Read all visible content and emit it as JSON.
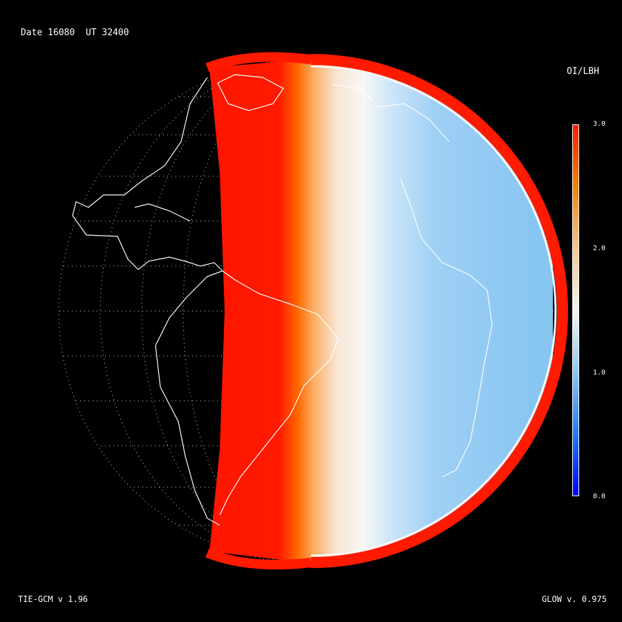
{
  "header": {
    "date_label": "Date 16080",
    "ut_label": "UT 32400"
  },
  "colorbar": {
    "title": "OI/LBH",
    "ticks": [
      "3.0",
      "2.0",
      "1.0",
      "0.0"
    ],
    "range": [
      0.0,
      3.0
    ],
    "colors": [
      "#0000ff",
      "#1e7bff",
      "#8cc8f5",
      "#f5f5f0",
      "#f5c590",
      "#f58200",
      "#ff1a00"
    ]
  },
  "footer": {
    "model_label": "TIE-GCM v 1.96",
    "glow_label": "GLOW v. 0.975"
  }
}
